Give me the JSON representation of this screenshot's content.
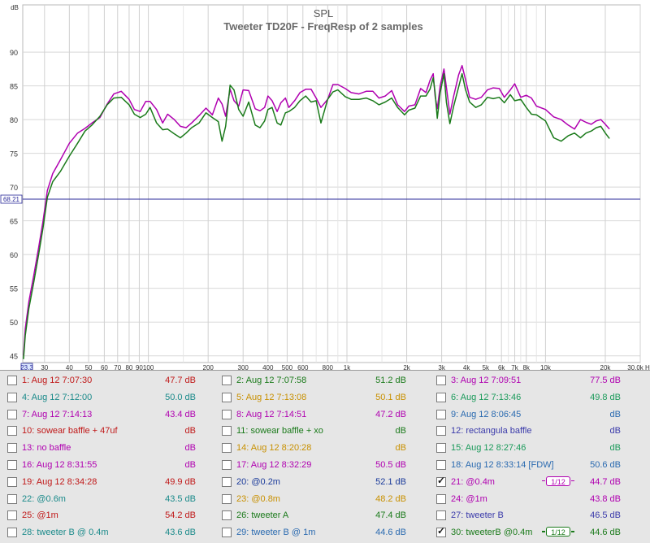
{
  "chart_data": {
    "type": "line",
    "title": "SPL",
    "subtitle": "Tweeter TD20F - FreqResp of 2 samples",
    "ylabel": "dB",
    "xunit": "Hz",
    "xscale": "log",
    "xlim": [
      23.3,
      30000
    ],
    "ylim": [
      44,
      97
    ],
    "grid": true,
    "x_axis_start_label": "23.3",
    "reference_line": {
      "value": 68.21,
      "label": "68.21"
    },
    "y_ticks": [
      {
        "v": 45,
        "label": "45"
      },
      {
        "v": 50,
        "label": "50"
      },
      {
        "v": 55,
        "label": "55"
      },
      {
        "v": 60,
        "label": "60"
      },
      {
        "v": 65,
        "label": "65"
      },
      {
        "v": 70,
        "label": "70"
      },
      {
        "v": 75,
        "label": "75"
      },
      {
        "v": 80,
        "label": "80"
      },
      {
        "v": 85,
        "label": "85"
      },
      {
        "v": 90,
        "label": "90"
      }
    ],
    "x_ticks": [
      {
        "v": 30,
        "label": "30"
      },
      {
        "v": 40,
        "label": "40"
      },
      {
        "v": 50,
        "label": "50"
      },
      {
        "v": 60,
        "label": "60"
      },
      {
        "v": 70,
        "label": "70"
      },
      {
        "v": 80,
        "label": "80"
      },
      {
        "v": 90,
        "label": "90"
      },
      {
        "v": 100,
        "label": "100"
      },
      {
        "v": 200,
        "label": "200"
      },
      {
        "v": 300,
        "label": "300"
      },
      {
        "v": 400,
        "label": "400"
      },
      {
        "v": 500,
        "label": "500"
      },
      {
        "v": 600,
        "label": "600"
      },
      {
        "v": 800,
        "label": "800"
      },
      {
        "v": 1000,
        "label": "1k"
      },
      {
        "v": 2000,
        "label": "2k"
      },
      {
        "v": 3000,
        "label": "3k"
      },
      {
        "v": 4000,
        "label": "4k"
      },
      {
        "v": 5000,
        "label": "5k"
      },
      {
        "v": 6000,
        "label": "6k"
      },
      {
        "v": 7000,
        "label": "7k"
      },
      {
        "v": 8000,
        "label": "8k"
      },
      {
        "v": 10000,
        "label": "10k"
      },
      {
        "v": 20000,
        "label": "20k"
      },
      {
        "v": 30000,
        "label": "30.0k Hz"
      }
    ],
    "minor_x_gridlines": [
      150,
      700,
      900,
      1500,
      6500,
      7500,
      9000
    ],
    "series": [
      {
        "name": "21: @0.4m",
        "color": "#b000b0",
        "points": [
          [
            23.5,
            45
          ],
          [
            24,
            49
          ],
          [
            25,
            53
          ],
          [
            26.5,
            57
          ],
          [
            28,
            61
          ],
          [
            29.5,
            65
          ],
          [
            31,
            69.5
          ],
          [
            33,
            72
          ],
          [
            36,
            74
          ],
          [
            40,
            76.5
          ],
          [
            44,
            78
          ],
          [
            48,
            78.7
          ],
          [
            52,
            79.5
          ],
          [
            57,
            80.3
          ],
          [
            62,
            82.3
          ],
          [
            67,
            83.8
          ],
          [
            73,
            84.2
          ],
          [
            80,
            83
          ],
          [
            85,
            81.5
          ],
          [
            91,
            81.2
          ],
          [
            97,
            82.7
          ],
          [
            102,
            82.7
          ],
          [
            110,
            81.5
          ],
          [
            118,
            79.5
          ],
          [
            125,
            80.8
          ],
          [
            135,
            80
          ],
          [
            145,
            79
          ],
          [
            155,
            78.8
          ],
          [
            165,
            79.5
          ],
          [
            180,
            80.6
          ],
          [
            195,
            81.7
          ],
          [
            210,
            80.7
          ],
          [
            225,
            83.2
          ],
          [
            235,
            82.3
          ],
          [
            245,
            80.5
          ],
          [
            258,
            84.5
          ],
          [
            270,
            82.8
          ],
          [
            285,
            82
          ],
          [
            300,
            84.4
          ],
          [
            320,
            84.3
          ],
          [
            345,
            81.6
          ],
          [
            365,
            81.3
          ],
          [
            385,
            81.8
          ],
          [
            400,
            83.5
          ],
          [
            420,
            82.8
          ],
          [
            445,
            81.2
          ],
          [
            465,
            82.5
          ],
          [
            490,
            83.2
          ],
          [
            510,
            81.8
          ],
          [
            545,
            82.8
          ],
          [
            580,
            84
          ],
          [
            620,
            84.5
          ],
          [
            660,
            84.5
          ],
          [
            700,
            83.2
          ],
          [
            740,
            81.8
          ],
          [
            800,
            83
          ],
          [
            850,
            85.2
          ],
          [
            900,
            85.2
          ],
          [
            980,
            84.6
          ],
          [
            1050,
            84
          ],
          [
            1150,
            83.8
          ],
          [
            1250,
            84.2
          ],
          [
            1350,
            84.2
          ],
          [
            1450,
            83.2
          ],
          [
            1560,
            83.5
          ],
          [
            1680,
            84.3
          ],
          [
            1800,
            82.2
          ],
          [
            1950,
            81.2
          ],
          [
            2050,
            82
          ],
          [
            2200,
            82.2
          ],
          [
            2350,
            84.6
          ],
          [
            2500,
            84
          ],
          [
            2620,
            85.8
          ],
          [
            2720,
            86.8
          ],
          [
            2780,
            83.5
          ],
          [
            2850,
            81.6
          ],
          [
            2950,
            85
          ],
          [
            3080,
            87.5
          ],
          [
            3170,
            84.7
          ],
          [
            3300,
            80.8
          ],
          [
            3450,
            83.5
          ],
          [
            3650,
            86.6
          ],
          [
            3800,
            88
          ],
          [
            3950,
            86
          ],
          [
            4150,
            83.3
          ],
          [
            4450,
            83
          ],
          [
            4750,
            83.3
          ],
          [
            5100,
            84.4
          ],
          [
            5450,
            84.7
          ],
          [
            5850,
            84.6
          ],
          [
            6200,
            83.3
          ],
          [
            6650,
            84.4
          ],
          [
            7000,
            85.3
          ],
          [
            7500,
            83.3
          ],
          [
            8000,
            83.6
          ],
          [
            8500,
            83.2
          ],
          [
            9000,
            82
          ],
          [
            10000,
            81.5
          ],
          [
            11000,
            80.4
          ],
          [
            12000,
            80
          ],
          [
            13000,
            79.2
          ],
          [
            14000,
            78.6
          ],
          [
            15000,
            80
          ],
          [
            16000,
            79.6
          ],
          [
            17000,
            79.3
          ],
          [
            18000,
            79.8
          ],
          [
            19000,
            80
          ],
          [
            20000,
            79.3
          ],
          [
            21000,
            78.6
          ]
        ]
      },
      {
        "name": "30: tweeterB @0.4m",
        "color": "#1a7a1a",
        "points": [
          [
            23.5,
            44.5
          ],
          [
            24,
            48
          ],
          [
            25,
            52
          ],
          [
            26.5,
            56
          ],
          [
            28,
            60
          ],
          [
            29.5,
            64
          ],
          [
            31,
            68.5
          ],
          [
            33,
            70.8
          ],
          [
            36,
            72.3
          ],
          [
            40,
            74.6
          ],
          [
            44,
            76.5
          ],
          [
            48,
            78.3
          ],
          [
            52,
            79.2
          ],
          [
            57,
            80.5
          ],
          [
            62,
            82.2
          ],
          [
            67,
            83.2
          ],
          [
            73,
            83.3
          ],
          [
            80,
            82.2
          ],
          [
            85,
            80.8
          ],
          [
            91,
            80.3
          ],
          [
            97,
            80.8
          ],
          [
            102,
            81.8
          ],
          [
            110,
            79.5
          ],
          [
            118,
            78.5
          ],
          [
            125,
            78.6
          ],
          [
            135,
            77.9
          ],
          [
            145,
            77.3
          ],
          [
            155,
            78
          ],
          [
            165,
            78.8
          ],
          [
            180,
            79.5
          ],
          [
            195,
            81
          ],
          [
            210,
            80.3
          ],
          [
            225,
            79.7
          ],
          [
            235,
            76.8
          ],
          [
            245,
            79
          ],
          [
            258,
            85.1
          ],
          [
            270,
            84.4
          ],
          [
            285,
            81.5
          ],
          [
            300,
            80.5
          ],
          [
            320,
            82.6
          ],
          [
            345,
            79.2
          ],
          [
            365,
            78.8
          ],
          [
            385,
            79.8
          ],
          [
            400,
            81.5
          ],
          [
            420,
            81.8
          ],
          [
            445,
            79.5
          ],
          [
            465,
            79.2
          ],
          [
            490,
            81
          ],
          [
            510,
            81.2
          ],
          [
            545,
            81.8
          ],
          [
            580,
            82.8
          ],
          [
            620,
            83.5
          ],
          [
            660,
            82.6
          ],
          [
            700,
            82.8
          ],
          [
            740,
            79.5
          ],
          [
            800,
            83
          ],
          [
            850,
            84.1
          ],
          [
            900,
            84.4
          ],
          [
            980,
            83.4
          ],
          [
            1050,
            83
          ],
          [
            1150,
            83
          ],
          [
            1250,
            83.2
          ],
          [
            1350,
            82.8
          ],
          [
            1450,
            82.2
          ],
          [
            1560,
            82.6
          ],
          [
            1680,
            83.2
          ],
          [
            1800,
            81.8
          ],
          [
            1950,
            80.7
          ],
          [
            2050,
            81.4
          ],
          [
            2200,
            81.7
          ],
          [
            2350,
            83.5
          ],
          [
            2500,
            83.5
          ],
          [
            2620,
            84.5
          ],
          [
            2720,
            86.2
          ],
          [
            2780,
            84
          ],
          [
            2850,
            80.2
          ],
          [
            2950,
            84
          ],
          [
            3080,
            86.8
          ],
          [
            3170,
            82.5
          ],
          [
            3300,
            79.4
          ],
          [
            3450,
            82
          ],
          [
            3650,
            84.8
          ],
          [
            3800,
            86.8
          ],
          [
            3950,
            84.5
          ],
          [
            4150,
            82.6
          ],
          [
            4450,
            81.8
          ],
          [
            4750,
            82.2
          ],
          [
            5100,
            83.3
          ],
          [
            5450,
            83.1
          ],
          [
            5850,
            83.3
          ],
          [
            6200,
            82.5
          ],
          [
            6650,
            83.7
          ],
          [
            7000,
            82.8
          ],
          [
            7500,
            83
          ],
          [
            8000,
            81.8
          ],
          [
            8500,
            80.8
          ],
          [
            9000,
            80.7
          ],
          [
            10000,
            79.8
          ],
          [
            11000,
            77.3
          ],
          [
            12000,
            76.8
          ],
          [
            13000,
            77.6
          ],
          [
            14000,
            78
          ],
          [
            15000,
            77.3
          ],
          [
            16000,
            78
          ],
          [
            17000,
            78.3
          ],
          [
            18000,
            78.8
          ],
          [
            19000,
            79
          ],
          [
            20000,
            78
          ],
          [
            21000,
            77.2
          ]
        ]
      }
    ]
  },
  "legend": {
    "items": [
      {
        "label": "1: Aug 12 7:07:30",
        "value": "47.7 dB",
        "color": "#c01818",
        "checked": false
      },
      {
        "label": "2: Aug 12 7:07:58",
        "value": "51.2 dB",
        "color": "#1a7a1a",
        "checked": false
      },
      {
        "label": "3: Aug 12 7:09:51",
        "value": "77.5 dB",
        "color": "#b000b0",
        "checked": false
      },
      {
        "label": "4: Aug 12 7:12:00",
        "value": "50.0 dB",
        "color": "#1a8a8a",
        "checked": false
      },
      {
        "label": "5: Aug 12 7:13:08",
        "value": "50.1 dB",
        "color": "#c89000",
        "checked": false
      },
      {
        "label": "6: Aug 12 7:13:46",
        "value": "49.8 dB",
        "color": "#1a9a5a",
        "checked": false
      },
      {
        "label": "7: Aug 12 7:14:13",
        "value": "43.4 dB",
        "color": "#b000b0",
        "checked": false
      },
      {
        "label": "8: Aug 12 7:14:51",
        "value": "47.2 dB",
        "color": "#b000b0",
        "checked": false
      },
      {
        "label": "9: Aug 12 8:06:45",
        "value": "dB",
        "color": "#2a6ab0",
        "checked": false
      },
      {
        "label": "10: sowear baffle + 47uf",
        "value": "dB",
        "color": "#c01818",
        "checked": false
      },
      {
        "label": "11: sowear baffle + xo",
        "value": "dB",
        "color": "#1a7a1a",
        "checked": false
      },
      {
        "label": "12: rectangula baffle",
        "value": "dB",
        "color": "#3a3aaa",
        "checked": false
      },
      {
        "label": "13: no baffle",
        "value": "dB",
        "color": "#b000b0",
        "checked": false
      },
      {
        "label": "14: Aug 12 8:20:28",
        "value": "dB",
        "color": "#c89000",
        "checked": false
      },
      {
        "label": "15: Aug 12 8:27:46",
        "value": "dB",
        "color": "#1a9a5a",
        "checked": false
      },
      {
        "label": "16: Aug 12 8:31:55",
        "value": "dB",
        "color": "#b000b0",
        "checked": false
      },
      {
        "label": "17: Aug 12 8:32:29",
        "value": "50.5 dB",
        "color": "#b000b0",
        "checked": false
      },
      {
        "label": "18: Aug 12 8:33:14 [FDW]",
        "value": "50.6 dB",
        "color": "#2a6ab0",
        "checked": false
      },
      {
        "label": "19: Aug 12 8:34:28",
        "value": "49.9 dB",
        "color": "#c01818",
        "checked": false
      },
      {
        "label": "20: @0.2m",
        "value": "52.1 dB",
        "color": "#1a3a9a",
        "checked": false
      },
      {
        "label": "21: @0.4m",
        "value": "44.7 dB",
        "color": "#b000b0",
        "checked": true,
        "badge": "1/12"
      },
      {
        "label": "22: @0.6m",
        "value": "43.5 dB",
        "color": "#1a8a8a",
        "checked": false
      },
      {
        "label": "23: @0.8m",
        "value": "48.2 dB",
        "color": "#c89000",
        "checked": false
      },
      {
        "label": "24: @1m",
        "value": "43.8 dB",
        "color": "#b000b0",
        "checked": false
      },
      {
        "label": "25: @1m",
        "value": "54.2 dB",
        "color": "#c01818",
        "checked": false
      },
      {
        "label": "26: tweeter A",
        "value": "47.4 dB",
        "color": "#1a7a1a",
        "checked": false
      },
      {
        "label": "27: tweeter B",
        "value": "46.5 dB",
        "color": "#3a3aaa",
        "checked": false
      },
      {
        "label": "28: tweeter B @ 0.4m",
        "value": "43.6 dB",
        "color": "#1a8a8a",
        "checked": false
      },
      {
        "label": "29: tweeter B @ 1m",
        "value": "44.6 dB",
        "color": "#2a6ab0",
        "checked": false
      },
      {
        "label": "30: tweeterB @0.4m",
        "value": "44.6 dB",
        "color": "#1a7a1a",
        "checked": true,
        "badge": "1/12"
      }
    ]
  }
}
